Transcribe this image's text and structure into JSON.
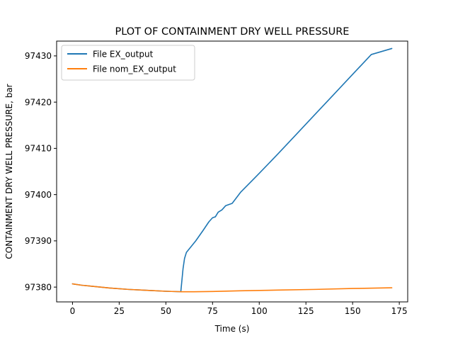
{
  "chart_data": {
    "type": "line",
    "title": "PLOT OF CONTAINMENT DRY WELL PRESSURE",
    "xlabel": "Time (s)",
    "ylabel": "CONTAINMENT DRY WELL PRESSURE, bar",
    "xlim": [
      -8.5,
      179.5
    ],
    "ylim": [
      97376.8,
      97433.2
    ],
    "xticks": [
      0,
      25,
      50,
      75,
      100,
      125,
      150,
      175
    ],
    "yticks": [
      97380,
      97390,
      97400,
      97410,
      97420,
      97430
    ],
    "grid": false,
    "legend_position": "top-left",
    "series": [
      {
        "name": "File EX_output",
        "color": "#1f77b4",
        "points": [
          [
            0,
            97380.7
          ],
          [
            5,
            97380.4
          ],
          [
            10,
            97380.2
          ],
          [
            20,
            97379.8
          ],
          [
            30,
            97379.5
          ],
          [
            40,
            97379.3
          ],
          [
            50,
            97379.1
          ],
          [
            58,
            97379.0
          ],
          [
            58.6,
            97381.5
          ],
          [
            59.2,
            97384.0
          ],
          [
            60,
            97386.2
          ],
          [
            61,
            97387.5
          ],
          [
            63,
            97388.5
          ],
          [
            66,
            97390.0
          ],
          [
            70,
            97392.3
          ],
          [
            73,
            97394.1
          ],
          [
            75,
            97395.0
          ],
          [
            76.5,
            97395.2
          ],
          [
            78,
            97396.2
          ],
          [
            80,
            97396.7
          ],
          [
            82,
            97397.6
          ],
          [
            84,
            97397.9
          ],
          [
            85.5,
            97398.1
          ],
          [
            90,
            97400.5
          ],
          [
            100,
            97404.6
          ],
          [
            110,
            97408.8
          ],
          [
            120,
            97413.1
          ],
          [
            130,
            97417.4
          ],
          [
            140,
            97421.7
          ],
          [
            150,
            97426.0
          ],
          [
            160,
            97430.3
          ],
          [
            171,
            97431.6
          ]
        ]
      },
      {
        "name": "File nom_EX_output",
        "color": "#ff7f0e",
        "points": [
          [
            0,
            97380.7
          ],
          [
            5,
            97380.4
          ],
          [
            10,
            97380.2
          ],
          [
            20,
            97379.8
          ],
          [
            30,
            97379.5
          ],
          [
            40,
            97379.3
          ],
          [
            50,
            97379.1
          ],
          [
            58,
            97379.0
          ],
          [
            65,
            97379.0
          ],
          [
            75,
            97379.05
          ],
          [
            90,
            97379.2
          ],
          [
            110,
            97379.35
          ],
          [
            130,
            97379.5
          ],
          [
            150,
            97379.7
          ],
          [
            171,
            97379.85
          ]
        ]
      }
    ]
  }
}
